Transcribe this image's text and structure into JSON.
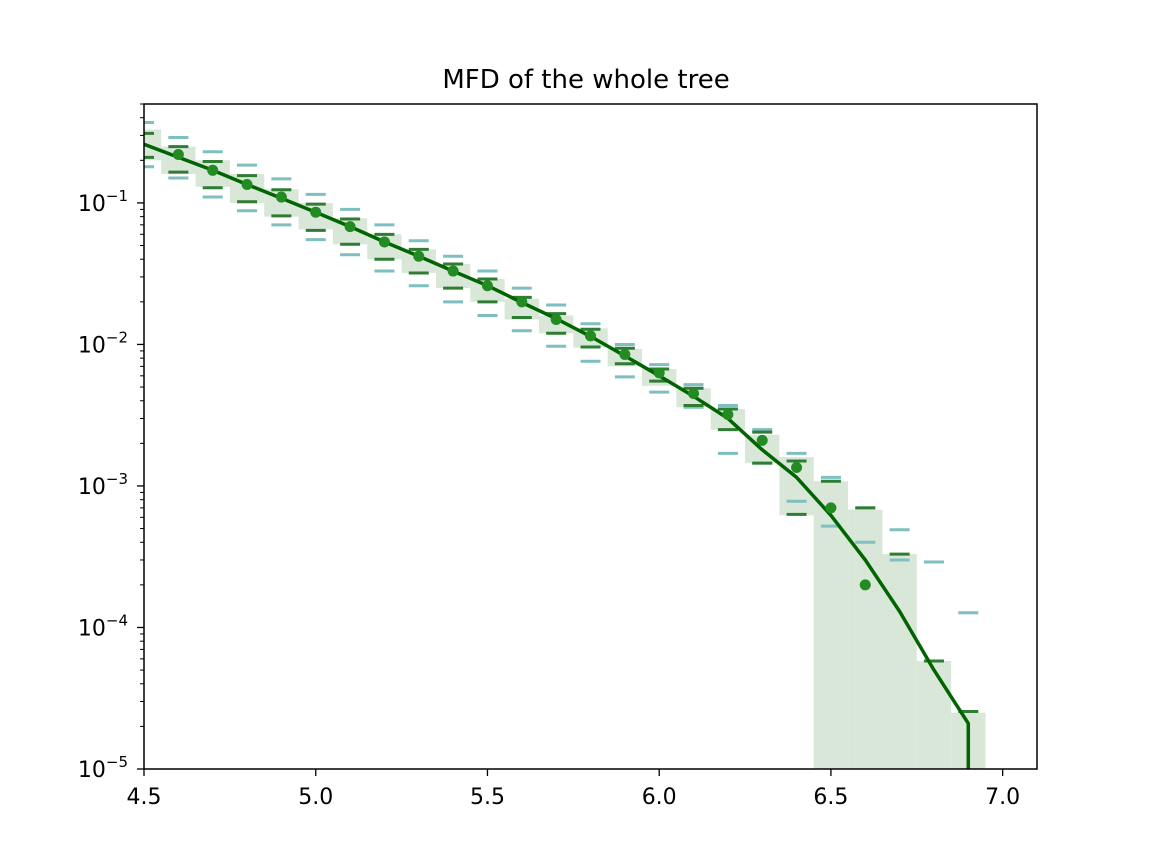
{
  "chart_data": {
    "type": "line",
    "title": "MFD of the whole tree",
    "xlabel": "",
    "ylabel": "",
    "x_scale": "linear",
    "y_scale": "log",
    "xlim": [
      4.5,
      7.1
    ],
    "ylim": [
      1e-05,
      0.5
    ],
    "x_ticks": [
      "4.5",
      "5.0",
      "5.5",
      "6.0",
      "6.5",
      "7.0"
    ],
    "x_tick_values": [
      4.5,
      5.0,
      5.5,
      6.0,
      6.5,
      7.0
    ],
    "y_ticks": [
      {
        "base": "10",
        "exp": "−5",
        "value": 1e-05
      },
      {
        "base": "10",
        "exp": "−4",
        "value": 0.0001
      },
      {
        "base": "10",
        "exp": "−3",
        "value": 0.001
      },
      {
        "base": "10",
        "exp": "−2",
        "value": 0.01
      },
      {
        "base": "10",
        "exp": "−1",
        "value": 0.1
      }
    ],
    "grid": false,
    "legend": "none",
    "colors": {
      "mean_line": "#006400",
      "observed_points": "#228b22",
      "band_fill": "#d8e7d8",
      "inner_bounds": "#2e7d32",
      "outer_bounds": "#7fbfbf"
    },
    "series": [
      {
        "kind": "line",
        "x": [
          4.5,
          4.6,
          4.7,
          4.8,
          4.9,
          5.0,
          5.1,
          5.2,
          5.3,
          5.4,
          5.5,
          5.6,
          5.7,
          5.8,
          5.9,
          6.0,
          6.1,
          6.2,
          6.3,
          6.4,
          6.5,
          6.6,
          6.7,
          6.8,
          6.9,
          6.9
        ],
        "values": [
          0.26,
          0.21,
          0.17,
          0.135,
          0.108,
          0.086,
          0.068,
          0.053,
          0.042,
          0.033,
          0.026,
          0.0198,
          0.0152,
          0.0114,
          0.0083,
          0.006,
          0.0043,
          0.003,
          0.0018,
          0.00115,
          0.00062,
          0.0003,
          0.00013,
          5e-05,
          2.1e-05,
          1e-05
        ]
      },
      {
        "kind": "points",
        "x": [
          4.6,
          4.7,
          4.8,
          4.9,
          5.0,
          5.1,
          5.2,
          5.3,
          5.4,
          5.5,
          5.6,
          5.7,
          5.8,
          5.9,
          6.0,
          6.1,
          6.2,
          6.3,
          6.4,
          6.5,
          6.6
        ],
        "values": [
          0.22,
          0.17,
          0.135,
          0.11,
          0.086,
          0.068,
          0.053,
          0.042,
          0.033,
          0.026,
          0.02,
          0.015,
          0.0115,
          0.0085,
          0.0063,
          0.0045,
          0.0032,
          0.0021,
          0.00135,
          0.0007,
          0.0002
        ]
      },
      {
        "kind": "band",
        "x": [
          4.5,
          4.6,
          4.7,
          4.8,
          4.9,
          5.0,
          5.1,
          5.2,
          5.3,
          5.4,
          5.5,
          5.6,
          5.7,
          5.8,
          5.9,
          6.0,
          6.1,
          6.2,
          6.3,
          6.4,
          6.5,
          6.6,
          6.7,
          6.8,
          6.9
        ],
        "lower": [
          0.2,
          0.16,
          0.13,
          0.1,
          0.08,
          0.065,
          0.051,
          0.04,
          0.032,
          0.025,
          0.02,
          0.015,
          0.012,
          0.0095,
          0.007,
          0.0051,
          0.0036,
          0.0025,
          0.00145,
          0.00062,
          1e-05,
          1e-05,
          1e-05,
          1e-05,
          1e-05
        ],
        "upper": [
          0.33,
          0.25,
          0.2,
          0.16,
          0.125,
          0.1,
          0.078,
          0.06,
          0.047,
          0.037,
          0.029,
          0.021,
          0.016,
          0.013,
          0.0093,
          0.0067,
          0.0049,
          0.0035,
          0.0023,
          0.0016,
          0.00108,
          0.00068,
          0.00033,
          5.8e-05,
          2.5e-05
        ]
      },
      {
        "kind": "outer_bounds",
        "x": [
          4.5,
          4.6,
          4.7,
          4.8,
          4.9,
          5.0,
          5.1,
          5.2,
          5.3,
          5.4,
          5.5,
          5.6,
          5.7,
          5.8,
          5.9,
          6.0,
          6.1,
          6.2,
          6.3,
          6.4,
          6.5,
          6.6,
          6.7,
          6.8,
          6.9
        ],
        "lower": [
          0.18,
          0.15,
          0.11,
          0.088,
          0.07,
          0.055,
          0.043,
          0.033,
          0.026,
          0.02,
          0.016,
          0.0125,
          0.0097,
          0.0076,
          0.0059,
          0.0046,
          0.0036,
          0.0017,
          0.00145,
          0.00078,
          0.00052,
          0.0004,
          0.0003,
          null,
          null
        ],
        "upper": [
          0.37,
          0.29,
          0.23,
          0.185,
          0.148,
          0.115,
          0.09,
          0.07,
          0.054,
          0.042,
          0.033,
          0.025,
          0.019,
          0.014,
          0.01,
          0.0072,
          0.0052,
          0.0037,
          0.0025,
          0.0017,
          0.00115,
          0.0007,
          0.00049,
          0.00029,
          0.000127
        ]
      },
      {
        "kind": "inner_bounds",
        "x": [
          4.5,
          4.6,
          4.7,
          4.8,
          4.9,
          5.0,
          5.1,
          5.2,
          5.3,
          5.4,
          5.5,
          5.6,
          5.7,
          5.8,
          5.9,
          6.0,
          6.1,
          6.2,
          6.3,
          6.4,
          6.5,
          6.6,
          6.7,
          6.8,
          6.9
        ],
        "lower": [
          0.21,
          0.165,
          0.128,
          0.102,
          0.081,
          0.064,
          0.051,
          0.04,
          0.032,
          0.025,
          0.02,
          0.0155,
          0.012,
          0.0096,
          0.0073,
          0.0055,
          0.0037,
          0.0025,
          0.00145,
          0.00063,
          null,
          null,
          null,
          null,
          null
        ],
        "upper": [
          0.31,
          0.25,
          0.196,
          0.156,
          0.124,
          0.098,
          0.077,
          0.06,
          0.047,
          0.037,
          0.029,
          0.0215,
          0.0165,
          0.0128,
          0.0094,
          0.0067,
          0.0049,
          0.0035,
          0.0024,
          0.0015,
          0.00108,
          0.0007,
          0.00033,
          5.8e-05,
          2.55e-05
        ]
      }
    ]
  }
}
